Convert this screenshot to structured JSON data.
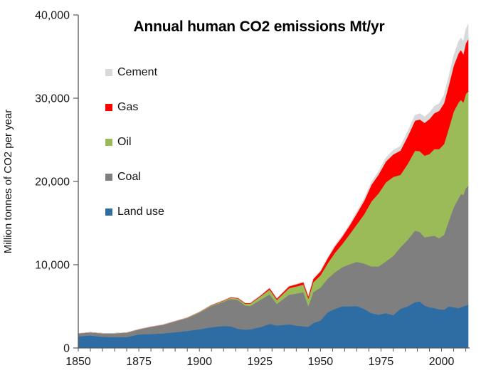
{
  "chart_data": {
    "type": "area",
    "stacked": true,
    "title": "Annual human CO2 emissions  Mt/yr",
    "xlabel": "",
    "ylabel": "Million tonnes of CO2 per year",
    "xlim": [
      1850,
      2011
    ],
    "ylim": [
      0,
      40000
    ],
    "grid": false,
    "legend_position": "upper-left-inside",
    "x_ticks_labeled": [
      {
        "v": 1850,
        "label": "1850"
      },
      {
        "v": 1875,
        "label": "1875"
      },
      {
        "v": 1900,
        "label": "1900"
      },
      {
        "v": 1925,
        "label": "1925"
      },
      {
        "v": 1950,
        "label": "1950"
      },
      {
        "v": 1975,
        "label": "1975"
      },
      {
        "v": 2000,
        "label": "2000"
      }
    ],
    "x_tick_minor_step": 5,
    "y_ticks": [
      {
        "v": 0,
        "label": "0"
      },
      {
        "v": 10000,
        "label": "10,000"
      },
      {
        "v": 20000,
        "label": "20,000"
      },
      {
        "v": 30000,
        "label": "30,000"
      },
      {
        "v": 40000,
        "label": "40,000"
      }
    ],
    "years": [
      1850,
      1855,
      1860,
      1865,
      1870,
      1875,
      1880,
      1885,
      1890,
      1895,
      1900,
      1905,
      1910,
      1913,
      1916,
      1919,
      1921,
      1925,
      1929,
      1932,
      1937,
      1940,
      1943,
      1945,
      1947,
      1950,
      1953,
      1956,
      1959,
      1962,
      1965,
      1968,
      1971,
      1974,
      1977,
      1980,
      1983,
      1986,
      1989,
      1991,
      1993,
      1995,
      1997,
      1999,
      2001,
      2003,
      2005,
      2007,
      2008,
      2009,
      2010,
      2011
    ],
    "series": [
      {
        "name": "Land use",
        "color": "#2E6DA4",
        "values": [
          1400,
          1500,
          1350,
          1300,
          1320,
          1620,
          1680,
          1760,
          1900,
          2060,
          2250,
          2500,
          2650,
          2600,
          2300,
          2200,
          2250,
          2500,
          2900,
          2700,
          2850,
          2700,
          2600,
          2550,
          3000,
          3300,
          4300,
          4700,
          5000,
          5000,
          5050,
          4700,
          4200,
          4000,
          4200,
          3950,
          4700,
          5000,
          5500,
          5600,
          5100,
          4900,
          4800,
          4650,
          4600,
          5000,
          4900,
          4800,
          4900,
          5000,
          5100,
          5200
        ]
      },
      {
        "name": "Coal",
        "color": "#7F7F7F",
        "values": [
          350,
          380,
          420,
          470,
          530,
          620,
          860,
          1020,
          1300,
          1550,
          2000,
          2550,
          2900,
          3300,
          3450,
          2900,
          2800,
          3250,
          3550,
          2600,
          3550,
          3850,
          4100,
          2500,
          3700,
          3970,
          4050,
          4400,
          4700,
          5050,
          5300,
          5450,
          5600,
          5800,
          6200,
          7100,
          7400,
          8000,
          8600,
          8350,
          8200,
          8500,
          8700,
          8550,
          9000,
          10300,
          12000,
          13200,
          13600,
          13400,
          14100,
          14300
        ]
      },
      {
        "name": "Oil",
        "color": "#9BBB59",
        "values": [
          0,
          0,
          0,
          0,
          3,
          10,
          11,
          15,
          18,
          30,
          55,
          85,
          120,
          160,
          190,
          220,
          280,
          400,
          580,
          490,
          780,
          850,
          920,
          900,
          1200,
          1470,
          1850,
          2350,
          2800,
          3600,
          4500,
          5900,
          7800,
          8800,
          9500,
          9500,
          8700,
          9100,
          9600,
          9700,
          9800,
          9900,
          10400,
          10700,
          10900,
          11100,
          11500,
          11500,
          11300,
          11100,
          11300,
          11300
        ]
      },
      {
        "name": "Gas",
        "color": "#FF0000",
        "values": [
          0,
          0,
          0,
          0,
          0,
          0,
          8,
          10,
          11,
          15,
          22,
          35,
          47,
          55,
          60,
          62,
          72,
          95,
          180,
          160,
          230,
          250,
          280,
          300,
          380,
          480,
          600,
          780,
          880,
          1050,
          1300,
          1600,
          2000,
          2250,
          2500,
          2700,
          2900,
          3300,
          3600,
          3800,
          3950,
          4200,
          4300,
          4600,
          4900,
          5200,
          5500,
          5900,
          6000,
          5800,
          6100,
          6300
        ]
      },
      {
        "name": "Cement",
        "color": "#D9D9D9",
        "values": [
          0,
          0,
          0,
          0,
          0,
          0,
          0,
          0,
          0,
          0,
          0,
          0,
          0,
          0,
          0,
          0,
          10,
          20,
          30,
          25,
          40,
          40,
          40,
          30,
          50,
          70,
          90,
          110,
          140,
          170,
          220,
          260,
          310,
          360,
          430,
          500,
          530,
          580,
          650,
          700,
          720,
          750,
          820,
          850,
          950,
          1050,
          1200,
          1400,
          1450,
          1500,
          1650,
          1800
        ]
      }
    ],
    "legend_order": [
      "Cement",
      "Gas",
      "Oil",
      "Coal",
      "Land use"
    ],
    "axis_color": "#595959"
  }
}
